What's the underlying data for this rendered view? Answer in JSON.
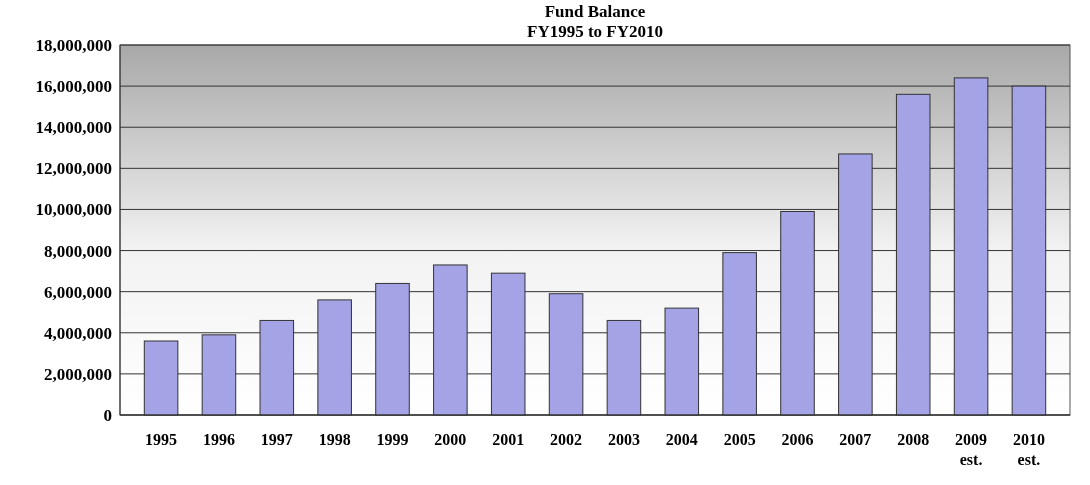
{
  "chart_data": {
    "type": "bar",
    "title": "Fund Balance",
    "subtitle": "FY1995 to FY2010",
    "categories": [
      "1995",
      "1996",
      "1997",
      "1998",
      "1999",
      "2000",
      "2001",
      "2002",
      "2003",
      "2004",
      "2005",
      "2006",
      "2007",
      "2008",
      "2009\nest.",
      "2010\nest."
    ],
    "values": [
      3600000,
      3900000,
      4600000,
      5600000,
      6400000,
      7300000,
      6900000,
      5900000,
      4600000,
      5200000,
      7900000,
      9900000,
      12700000,
      15600000,
      16400000,
      16000000
    ],
    "color": "#a3a3e6",
    "ylim": [
      0,
      18000000
    ],
    "yticks": [
      {
        "value": 0,
        "label": "0"
      },
      {
        "value": 2000000,
        "label": "2,000,000"
      },
      {
        "value": 4000000,
        "label": "4,000,000"
      },
      {
        "value": 6000000,
        "label": "6,000,000"
      },
      {
        "value": 8000000,
        "label": "8,000,000"
      },
      {
        "value": 10000000,
        "label": "10,000,000"
      },
      {
        "value": 12000000,
        "label": "12,000,000"
      },
      {
        "value": 14000000,
        "label": "14,000,000"
      },
      {
        "value": 16000000,
        "label": "16,000,000"
      },
      {
        "value": 18000000,
        "label": "18,000,000"
      }
    ],
    "grid": "y"
  }
}
